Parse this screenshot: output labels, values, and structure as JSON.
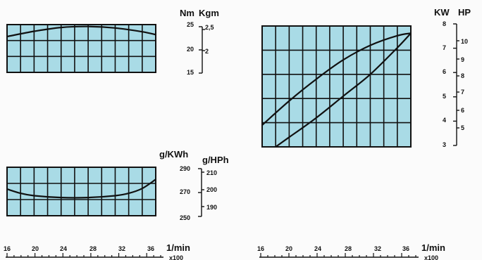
{
  "chart_data": [
    {
      "id": "torque",
      "type": "line",
      "x_label": "1/min",
      "x_multiplier": "x100",
      "x_ticks": [
        "16",
        "20",
        "24",
        "28",
        "32",
        "36"
      ],
      "xlim": [
        16,
        38
      ],
      "grid": true,
      "background": "#a9dbe6",
      "left_unit": "Nm",
      "right_unit": "Kgm",
      "left_ticks": [
        "25",
        "20",
        "15"
      ],
      "right_ticks": [
        "2,5",
        "2"
      ],
      "ylim": [
        15,
        25
      ],
      "series": [
        {
          "axis": "left",
          "x": [
            16,
            20,
            24,
            28,
            32,
            36,
            38
          ],
          "y": [
            22.5,
            23.6,
            24.4,
            24.6,
            24.3,
            23.5,
            22.9
          ]
        }
      ]
    },
    {
      "id": "power",
      "type": "line",
      "x_label": "1/min",
      "x_multiplier": "x100",
      "x_ticks": [
        "16",
        "20",
        "24",
        "28",
        "32",
        "36"
      ],
      "xlim": [
        16,
        38
      ],
      "grid": true,
      "background": "#a9dbe6",
      "left_unit": "KW",
      "right_unit": "HP",
      "left_ticks": [
        "8",
        "7",
        "6",
        "5",
        "4",
        "3"
      ],
      "right_ticks": [
        "10",
        "9",
        "8",
        "7",
        "6",
        "5"
      ],
      "ylim": [
        3,
        8
      ],
      "series": [
        {
          "axis": "left",
          "x": [
            16,
            20,
            24,
            28,
            32,
            36,
            38
          ],
          "y": [
            3.9,
            4.9,
            5.8,
            6.6,
            7.2,
            7.6,
            7.7
          ]
        },
        {
          "axis": "left",
          "x": [
            18,
            20,
            24,
            28,
            32,
            36,
            38
          ],
          "y": [
            3.0,
            3.4,
            4.2,
            5.1,
            6.0,
            7.1,
            7.7
          ]
        }
      ]
    },
    {
      "id": "consumption",
      "type": "line",
      "x_label": "1/min",
      "x_multiplier": "x100",
      "x_ticks": [
        "16",
        "20",
        "24",
        "28",
        "32",
        "36"
      ],
      "xlim": [
        16,
        38
      ],
      "grid": true,
      "background": "#a9dbe6",
      "left_unit": "g/KWh",
      "right_unit": "g/HPh",
      "left_ticks": [
        "290",
        "270",
        "250"
      ],
      "right_ticks": [
        "210",
        "200",
        "190"
      ],
      "ylim": [
        250,
        290
      ],
      "series": [
        {
          "axis": "left",
          "x": [
            16,
            18,
            20,
            24,
            28,
            32,
            34,
            36,
            38
          ],
          "y": [
            272,
            268.5,
            266.5,
            265,
            265,
            266.5,
            268.5,
            272.5,
            280
          ]
        }
      ]
    }
  ],
  "colors": {
    "plot_background": "#a9dbe6",
    "ink": "#111111"
  }
}
